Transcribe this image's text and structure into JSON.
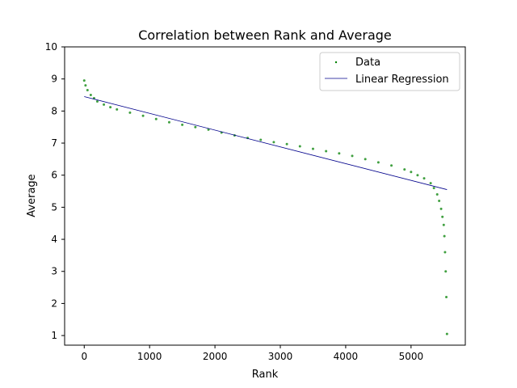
{
  "chart_data": {
    "type": "scatter",
    "title": "Correlation between Rank and Average",
    "xlabel": "Rank",
    "ylabel": "Average",
    "xlim": [
      -300,
      5830
    ],
    "ylim": [
      0.7,
      10.0
    ],
    "xticks": [
      0,
      1000,
      2000,
      3000,
      4000,
      5000
    ],
    "yticks": [
      1,
      2,
      3,
      4,
      5,
      6,
      7,
      8,
      9,
      10
    ],
    "grid": false,
    "legend": {
      "placement": "top-right",
      "entries": [
        "Data",
        "Linear Regression"
      ]
    },
    "series": [
      {
        "name": "Data",
        "kind": "scatter",
        "color": "#008000",
        "x": [
          0,
          20,
          50,
          100,
          150,
          200,
          300,
          400,
          500,
          700,
          900,
          1100,
          1300,
          1500,
          1700,
          1900,
          2100,
          2300,
          2500,
          2700,
          2900,
          3100,
          3300,
          3500,
          3700,
          3900,
          4100,
          4300,
          4500,
          4700,
          4900,
          5000,
          5100,
          5200,
          5300,
          5350,
          5400,
          5430,
          5460,
          5480,
          5500,
          5510,
          5520,
          5530,
          5540,
          5550
        ],
        "y": [
          8.95,
          8.8,
          8.65,
          8.5,
          8.4,
          8.3,
          8.2,
          8.12,
          8.05,
          7.95,
          7.85,
          7.75,
          7.65,
          7.57,
          7.5,
          7.42,
          7.33,
          7.24,
          7.16,
          7.1,
          7.03,
          6.97,
          6.9,
          6.82,
          6.75,
          6.68,
          6.6,
          6.5,
          6.4,
          6.3,
          6.18,
          6.1,
          6.0,
          5.9,
          5.75,
          5.6,
          5.4,
          5.2,
          4.95,
          4.7,
          4.45,
          4.1,
          3.6,
          3.0,
          2.2,
          1.05
        ]
      },
      {
        "name": "Linear Regression",
        "kind": "line",
        "color": "#00008b",
        "x": [
          0,
          5550
        ],
        "y": [
          8.45,
          5.55
        ]
      }
    ]
  }
}
